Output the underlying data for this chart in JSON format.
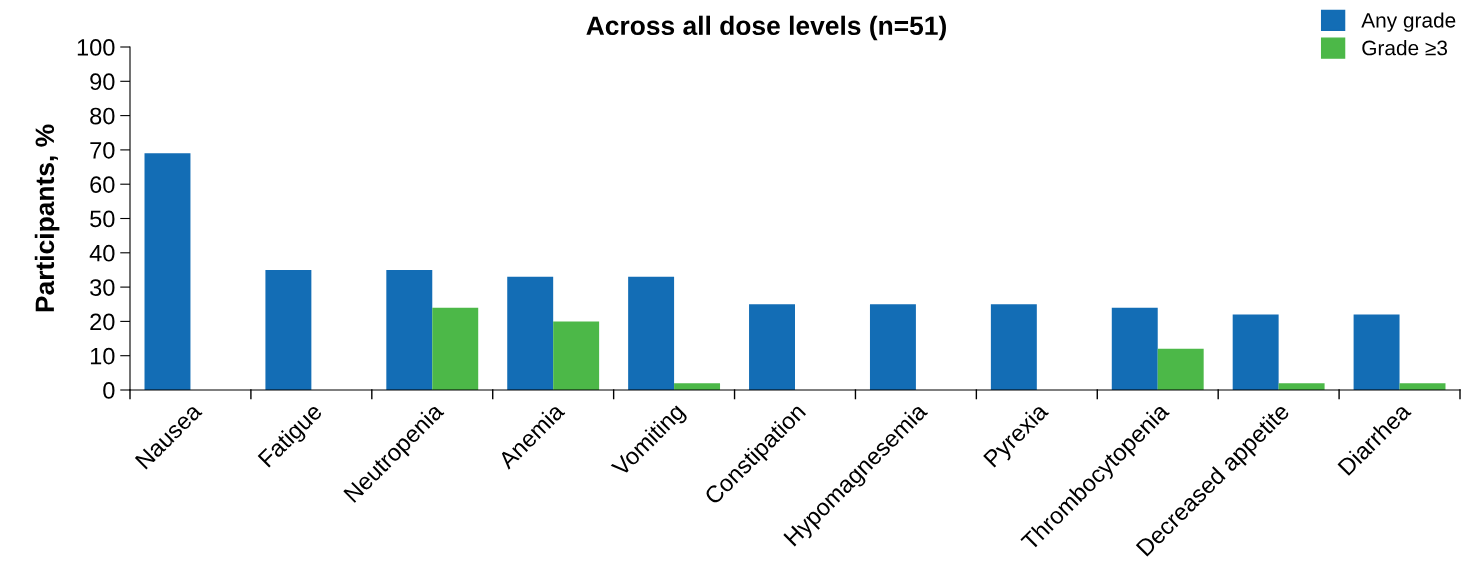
{
  "chart_data": {
    "type": "bar",
    "title": "Across all dose levels (n=51)",
    "ylabel": "Participants, %",
    "categories": [
      "Nausea",
      "Fatigue",
      "Neutropenia",
      "Anemia",
      "Vomiting",
      "Constipation",
      "Hypomagnesemia",
      "Pyrexia",
      "Thrombocytopenia",
      "Decreased appetite",
      "Diarrhea"
    ],
    "series": [
      {
        "name": "Any grade",
        "color": "#136db5",
        "values": [
          69,
          35,
          35,
          33,
          33,
          25,
          25,
          25,
          24,
          22,
          22
        ]
      },
      {
        "name": "Grade ≥3",
        "color": "#4cb848",
        "values": [
          0,
          0,
          24,
          20,
          2,
          0,
          0,
          0,
          12,
          2,
          2
        ]
      }
    ],
    "ylim": [
      0,
      100
    ],
    "yticks": [
      0,
      10,
      20,
      30,
      40,
      50,
      60,
      70,
      80,
      90,
      100
    ],
    "grid": false,
    "legend": "top right"
  }
}
